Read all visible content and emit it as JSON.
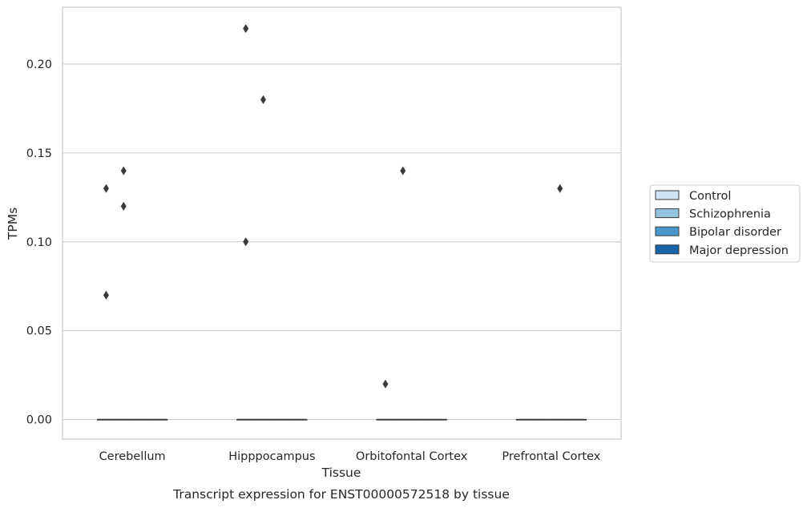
{
  "caption": "Transcript expression for ENST00000572518 by tissue",
  "chart_data": {
    "type": "box",
    "xlabel": "Tissue",
    "ylabel": "TPMs",
    "categories": [
      "Cerebellum",
      "Hipppocampus",
      "Orbitofontal Cortex",
      "Prefrontal Cortex"
    ],
    "ylim": [
      -0.011,
      0.232
    ],
    "yticks": [
      0.0,
      0.05,
      0.1,
      0.15,
      0.2
    ],
    "ytick_labels": [
      "0.00",
      "0.05",
      "0.10",
      "0.15",
      "0.20"
    ],
    "grid": "horizontal",
    "legend_position": "right",
    "series": [
      {
        "name": "Control",
        "color": "#d0e1f2",
        "median": [
          0,
          0,
          0,
          0
        ],
        "q1": [
          0,
          0,
          0,
          0
        ],
        "q3": [
          0,
          0,
          0,
          0
        ],
        "outliers": [
          [
            0.13,
            0.07
          ],
          [
            0.22,
            0.1
          ],
          [
            0.02
          ],
          []
        ]
      },
      {
        "name": "Schizophrenia",
        "color": "#94c4df",
        "median": [
          0,
          0,
          0,
          0
        ],
        "q1": [
          0,
          0,
          0,
          0
        ],
        "q3": [
          0,
          0,
          0,
          0
        ],
        "outliers": [
          [
            0.14,
            0.12
          ],
          [
            0.18
          ],
          [
            0.14
          ],
          []
        ]
      },
      {
        "name": "Bipolar disorder",
        "color": "#4a98c9",
        "median": [
          0,
          0,
          0,
          0
        ],
        "q1": [
          0,
          0,
          0,
          0
        ],
        "q3": [
          0,
          0,
          0,
          0
        ],
        "outliers": [
          [],
          [],
          [],
          [
            0.13
          ]
        ]
      },
      {
        "name": "Major depression",
        "color": "#1764ab",
        "median": [
          0,
          0,
          0,
          0
        ],
        "q1": [
          0,
          0,
          0,
          0
        ],
        "q3": [
          0,
          0,
          0,
          0
        ],
        "outliers": [
          [],
          [],
          [],
          []
        ]
      }
    ],
    "outlier_color": "#3a3a3a"
  }
}
